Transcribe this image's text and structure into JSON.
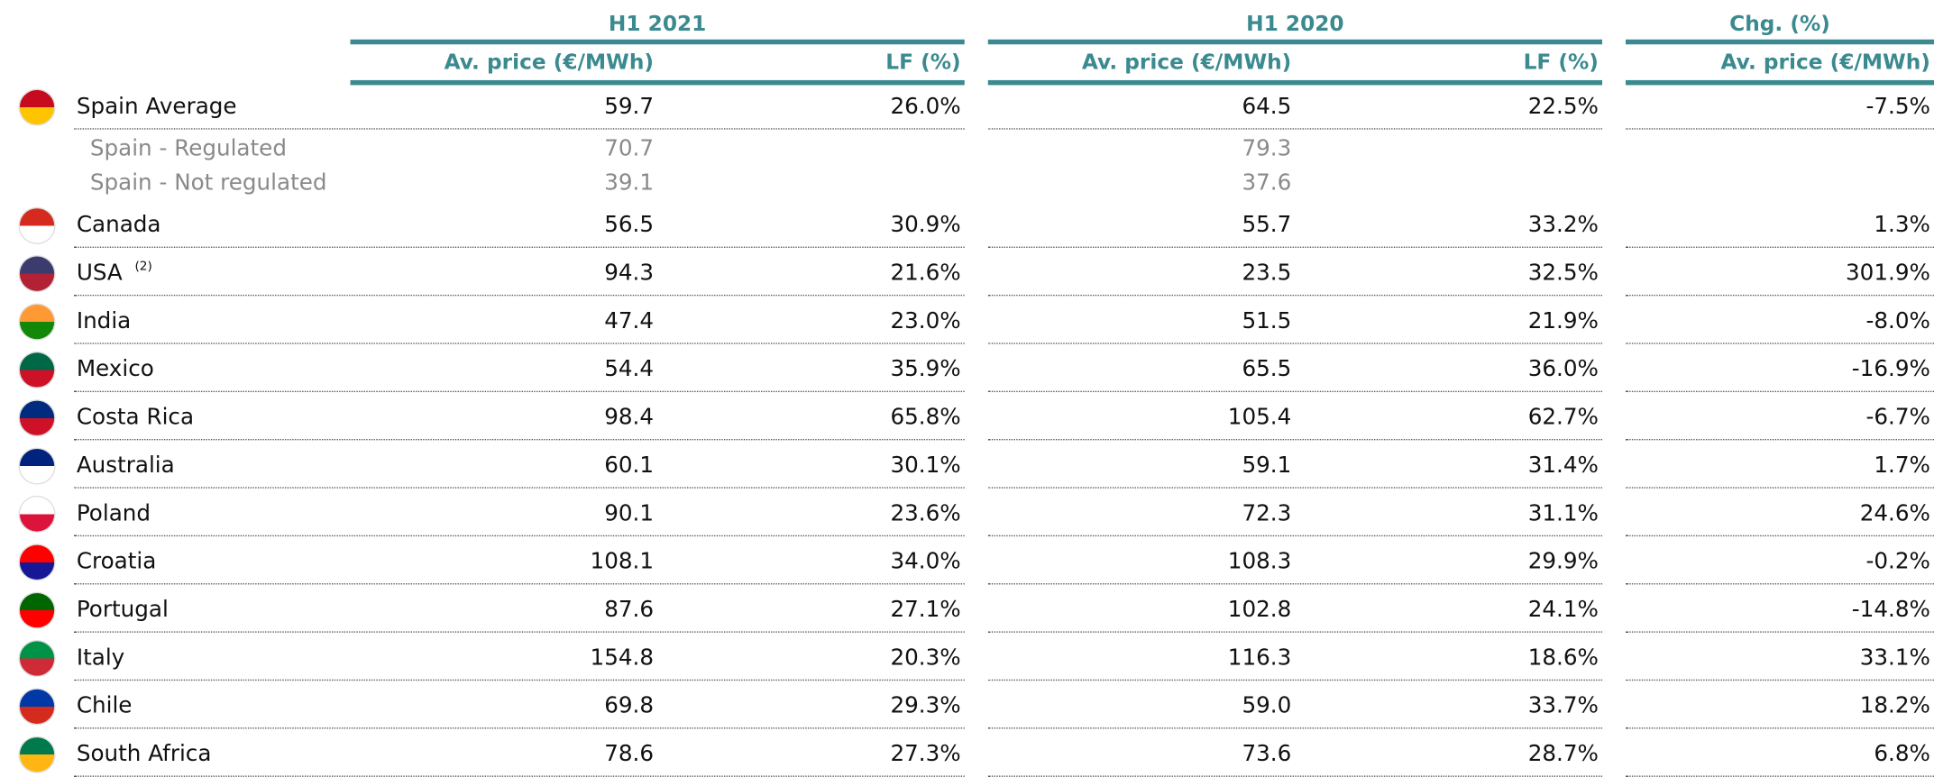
{
  "header": {
    "groups": [
      {
        "title": "H1 2021",
        "columns": [
          "Av. price (€/MWh)",
          "LF (%)"
        ]
      },
      {
        "title": "H1 2020",
        "columns": [
          "Av. price (€/MWh)",
          "LF (%)"
        ]
      },
      {
        "title": "Chg. (%)",
        "columns": [
          "Av. price (€/MWh)"
        ]
      }
    ]
  },
  "table": {
    "rows": [
      {
        "name": "Spain Average",
        "cells": [
          "59.7",
          "26.0%",
          "64.5",
          "22.5%",
          "-7.5%"
        ],
        "subrows": [
          {
            "name": "Spain - Regulated",
            "cells": [
              "70.7",
              "79.3"
            ]
          },
          {
            "name": "Spain - Not regulated",
            "cells": [
              "39.1",
              "37.6"
            ]
          }
        ]
      },
      {
        "name": "Canada",
        "cells": [
          "56.5",
          "30.9%",
          "55.7",
          "33.2%",
          "1.3%"
        ]
      },
      {
        "name": "USA",
        "note": "(2)",
        "cells": [
          "94.3",
          "21.6%",
          "23.5",
          "32.5%",
          "301.9%"
        ]
      },
      {
        "name": "India",
        "cells": [
          "47.4",
          "23.0%",
          "51.5",
          "21.9%",
          "-8.0%"
        ]
      },
      {
        "name": "Mexico",
        "cells": [
          "54.4",
          "35.9%",
          "65.5",
          "36.0%",
          "-16.9%"
        ]
      },
      {
        "name": "Costa Rica",
        "cells": [
          "98.4",
          "65.8%",
          "105.4",
          "62.7%",
          "-6.7%"
        ]
      },
      {
        "name": "Australia",
        "cells": [
          "60.1",
          "30.1%",
          "59.1",
          "31.4%",
          "1.7%"
        ]
      },
      {
        "name": "Poland",
        "cells": [
          "90.1",
          "23.6%",
          "72.3",
          "31.1%",
          "24.6%"
        ]
      },
      {
        "name": "Croatia",
        "cells": [
          "108.1",
          "34.0%",
          "108.3",
          "29.9%",
          "-0.2%"
        ]
      },
      {
        "name": "Portugal",
        "cells": [
          "87.6",
          "27.1%",
          "102.8",
          "24.1%",
          "-14.8%"
        ]
      },
      {
        "name": "Italy",
        "cells": [
          "154.8",
          "20.3%",
          "116.3",
          "18.6%",
          "33.1%"
        ]
      },
      {
        "name": "Chile",
        "cells": [
          "69.8",
          "29.3%",
          "59.0",
          "33.7%",
          "18.2%"
        ]
      },
      {
        "name": "South Africa",
        "cells": [
          "78.6",
          "27.3%",
          "73.6",
          "28.7%",
          "6.8%"
        ]
      }
    ]
  }
}
